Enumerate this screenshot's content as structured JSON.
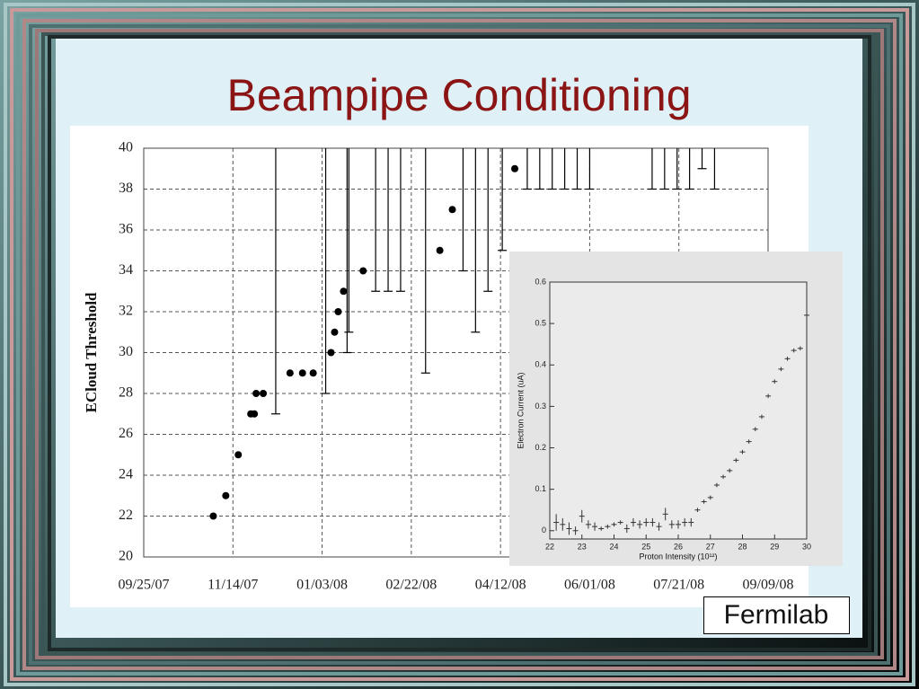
{
  "title": "Beampipe Conditioning",
  "source": "Fermilab",
  "chart_data": [
    {
      "type": "scatter",
      "y_label": "ECloud Threshold",
      "x": [
        "2007-11-03",
        "2007-11-10",
        "2007-11-17",
        "2007-11-24",
        "2007-11-26",
        "2007-11-27",
        "2007-12-01",
        "2007-12-16",
        "2007-12-23",
        "2007-12-29",
        "2008-01-08",
        "2008-01-10",
        "2008-01-12",
        "2008-01-15",
        "2008-01-26",
        "2008-03-09",
        "2008-03-16",
        "2008-04-20"
      ],
      "values": [
        22,
        23,
        25,
        27,
        27,
        28,
        28,
        29,
        29,
        29,
        30,
        31,
        32,
        33,
        34,
        35,
        37,
        39
      ],
      "color": "#000000",
      "intervals": {
        "x": [
          "2007-12-08",
          "2008-01-05",
          "2008-01-17",
          "2008-01-18",
          "2008-02-02",
          "2008-02-09",
          "2008-02-16",
          "2008-03-01",
          "2008-03-22",
          "2008-03-29",
          "2008-04-05",
          "2008-04-13",
          "2008-04-27",
          "2008-05-04",
          "2008-05-11",
          "2008-05-18",
          "2008-05-25",
          "2008-06-01",
          "2008-07-06",
          "2008-07-13",
          "2008-07-20",
          "2008-07-27",
          "2008-08-03",
          "2008-08-10"
        ],
        "low": [
          27,
          28,
          30,
          31,
          33,
          33,
          33,
          29,
          34,
          31,
          33,
          35,
          38,
          38,
          38,
          38,
          38,
          38,
          38,
          38,
          38,
          38,
          39,
          38
        ],
        "high": [
          40,
          40,
          40,
          40,
          40,
          40,
          40,
          40,
          40,
          40,
          40,
          40,
          40,
          40,
          40,
          40,
          40,
          40,
          40,
          40,
          40,
          40,
          40,
          40
        ]
      },
      "xlim": [
        "2007-09-25",
        "2008-09-09"
      ],
      "xticks": [
        {
          "value": "2007-09-25",
          "label": "09/25/07"
        },
        {
          "value": "2007-11-14",
          "label": "11/14/07"
        },
        {
          "value": "2008-01-03",
          "label": "01/03/08"
        },
        {
          "value": "2008-02-22",
          "label": "02/22/08"
        },
        {
          "value": "2008-04-12",
          "label": "04/12/08"
        },
        {
          "value": "2008-06-01",
          "label": "06/01/08"
        },
        {
          "value": "2008-07-21",
          "label": "07/21/08"
        },
        {
          "value": "2008-09-09",
          "label": "09/09/08"
        }
      ],
      "ylim": [
        20,
        40
      ],
      "yticks": [
        20,
        22,
        24,
        26,
        28,
        30,
        32,
        34,
        36,
        38,
        40
      ],
      "grid": true
    },
    {
      "type": "errorbar",
      "x_label": "Proton Intensity (10¹²)",
      "y_label": "Electron Current (uA)",
      "x": [
        22.2,
        22.4,
        22.6,
        22.8,
        23.0,
        23.2,
        23.4,
        23.6,
        23.8,
        24.0,
        24.2,
        24.4,
        24.6,
        24.8,
        25.0,
        25.2,
        25.4,
        25.6,
        25.8,
        26.0,
        26.2,
        26.4,
        26.6,
        26.8,
        27.0,
        27.2,
        27.4,
        27.6,
        27.8,
        28.0,
        28.2,
        28.4,
        28.6,
        28.8,
        29.0,
        29.2,
        29.4,
        29.6,
        29.8,
        30.0
      ],
      "values": [
        0.02,
        0.015,
        0.005,
        0.0,
        0.035,
        0.015,
        0.01,
        0.005,
        0.01,
        0.015,
        0.02,
        0.005,
        0.02,
        0.015,
        0.02,
        0.02,
        0.01,
        0.04,
        0.015,
        0.015,
        0.02,
        0.02,
        0.05,
        0.07,
        0.08,
        0.11,
        0.13,
        0.145,
        0.17,
        0.19,
        0.215,
        0.245,
        0.275,
        0.325,
        0.36,
        0.39,
        0.415,
        0.435,
        0.44,
        0.52
      ],
      "errors": [
        0.02,
        0.015,
        0.015,
        0.01,
        0.015,
        0.01,
        0.01,
        0.005,
        0.005,
        0.005,
        0.005,
        0.01,
        0.01,
        0.01,
        0.01,
        0.01,
        0.01,
        0.015,
        0.01,
        0.01,
        0.01,
        0.01,
        0.005,
        0.005,
        0.005,
        0.005,
        0.005,
        0.005,
        0.005,
        0.005,
        0.005,
        0.005,
        0.005,
        0.005,
        0.005,
        0.005,
        0.005,
        0.005,
        0.005,
        0.03
      ],
      "color": "#333333",
      "xlim": [
        22,
        30
      ],
      "xticks": [
        22,
        23,
        24,
        25,
        26,
        27,
        28,
        29,
        30
      ],
      "ylim": [
        -0.02,
        0.6
      ],
      "yticks": [
        0,
        0.1,
        0.2,
        0.3,
        0.4,
        0.5,
        0.6
      ]
    }
  ]
}
